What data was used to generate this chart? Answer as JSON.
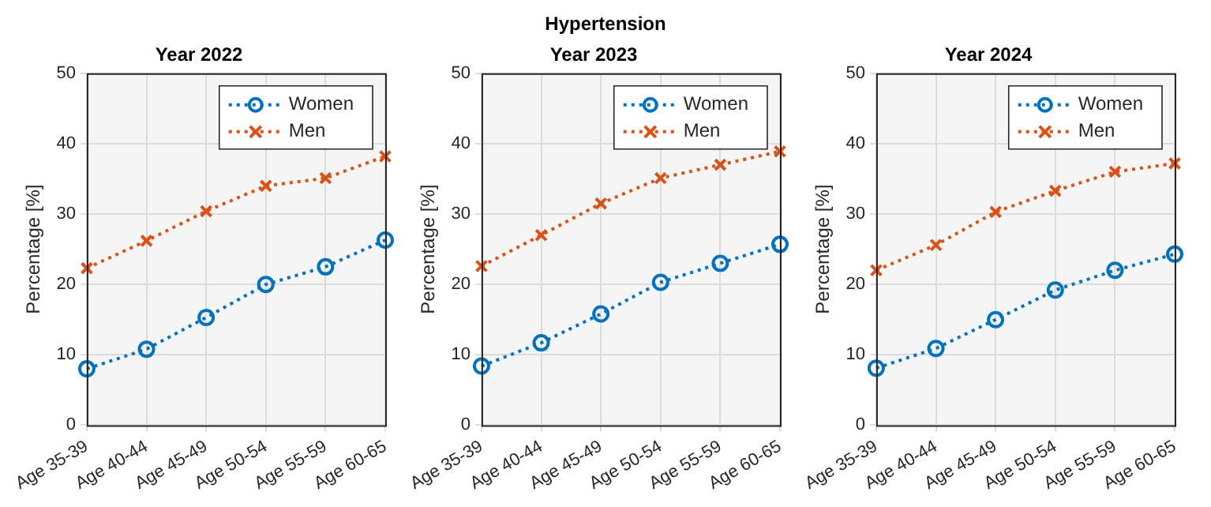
{
  "chart_data": [
    {
      "type": "other",
      "title": "Hypertension"
    },
    {
      "type": "line",
      "title": "Year 2022",
      "ylabel": "Percentage [%]",
      "categories": [
        "Age 35-39",
        "Age 40-44",
        "Age 45-49",
        "Age 50-54",
        "Age 55-59",
        "Age 60-65"
      ],
      "ylim": [
        0,
        50
      ],
      "yticks": [
        0,
        10,
        20,
        30,
        40,
        50
      ],
      "grid": true,
      "legend": "top right",
      "line_style": "dotted",
      "series": [
        {
          "name": "Women",
          "color": "#0072bd",
          "marker": "circle",
          "values": [
            8,
            10.8,
            15.3,
            20,
            22.5,
            26.3
          ]
        },
        {
          "name": "Men",
          "color": "#d95319",
          "marker": "cross",
          "values": [
            22.3,
            26.2,
            30.4,
            34,
            35.1,
            38.2
          ]
        }
      ]
    },
    {
      "type": "line",
      "title": "Year 2023",
      "ylabel": "Percentage [%]",
      "categories": [
        "Age 35-39",
        "Age 40-44",
        "Age 45-49",
        "Age 50-54",
        "Age 55-59",
        "Age 60-65"
      ],
      "ylim": [
        0,
        50
      ],
      "yticks": [
        0,
        10,
        20,
        30,
        40,
        50
      ],
      "grid": true,
      "legend": "top right",
      "line_style": "dotted",
      "series": [
        {
          "name": "Women",
          "color": "#0072bd",
          "marker": "circle",
          "values": [
            8.4,
            11.7,
            15.8,
            20.3,
            23,
            25.7
          ]
        },
        {
          "name": "Men",
          "color": "#d95319",
          "marker": "cross",
          "values": [
            22.6,
            27,
            31.5,
            35.1,
            37,
            38.9
          ]
        }
      ]
    },
    {
      "type": "line",
      "title": "Year 2024",
      "ylabel": "Percentage [%]",
      "categories": [
        "Age 35-39",
        "Age 40-44",
        "Age 45-49",
        "Age 50-54",
        "Age 55-59",
        "Age 60-65"
      ],
      "ylim": [
        0,
        50
      ],
      "yticks": [
        0,
        10,
        20,
        30,
        40,
        50
      ],
      "grid": true,
      "legend": "top right",
      "line_style": "dotted",
      "series": [
        {
          "name": "Women",
          "color": "#0072bd",
          "marker": "circle",
          "values": [
            8.1,
            10.9,
            15,
            19.2,
            22,
            24.3
          ]
        },
        {
          "name": "Men",
          "color": "#d95319",
          "marker": "cross",
          "values": [
            22,
            25.6,
            30.3,
            33.3,
            36,
            37.2
          ]
        }
      ]
    }
  ]
}
